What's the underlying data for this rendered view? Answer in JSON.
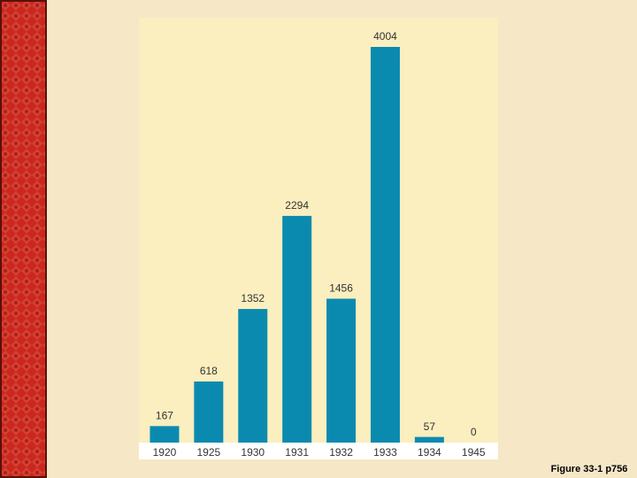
{
  "chart_data": {
    "type": "bar",
    "categories": [
      "1920",
      "1925",
      "1930",
      "1931",
      "1932",
      "1933",
      "1934",
      "1945"
    ],
    "values": [
      167,
      618,
      1352,
      2294,
      1456,
      4004,
      57,
      0
    ],
    "color": "#0b8ab0",
    "note": "Figure 33-1 p756"
  }
}
